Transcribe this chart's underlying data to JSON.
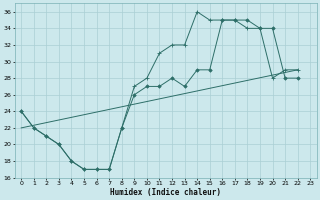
{
  "xlabel": "Humidex (Indice chaleur)",
  "bg_color": "#cce8ec",
  "grid_color": "#aacfd4",
  "line_color": "#2d6e68",
  "xlim": [
    -0.5,
    23.5
  ],
  "ylim": [
    16,
    37
  ],
  "xticks": [
    0,
    1,
    2,
    3,
    4,
    5,
    6,
    7,
    8,
    9,
    10,
    11,
    12,
    13,
    14,
    15,
    16,
    17,
    18,
    19,
    20,
    21,
    22,
    23
  ],
  "yticks": [
    16,
    18,
    20,
    22,
    24,
    26,
    28,
    30,
    32,
    34,
    36
  ],
  "curve1_x": [
    0,
    1,
    2,
    3,
    4,
    5,
    6,
    7,
    8,
    9,
    10,
    11,
    12,
    13,
    14,
    15,
    16,
    17,
    18,
    19,
    20,
    21,
    22
  ],
  "curve1_y": [
    24,
    22,
    21,
    20,
    18,
    17,
    17,
    17,
    22,
    26,
    27,
    27,
    28,
    27,
    29,
    29,
    35,
    35,
    35,
    34,
    34,
    28,
    28
  ],
  "curve2_x": [
    0,
    1,
    2,
    3,
    4,
    5,
    6,
    7,
    8,
    9,
    10,
    11,
    12,
    13,
    14,
    15,
    16,
    17,
    18,
    19,
    20,
    21,
    22
  ],
  "curve2_y": [
    24,
    22,
    21,
    20,
    18,
    17,
    17,
    17,
    22,
    27,
    28,
    31,
    32,
    32,
    36,
    35,
    35,
    35,
    34,
    34,
    28,
    29,
    29
  ],
  "trend_x": [
    0,
    22
  ],
  "trend_y": [
    22,
    29
  ]
}
